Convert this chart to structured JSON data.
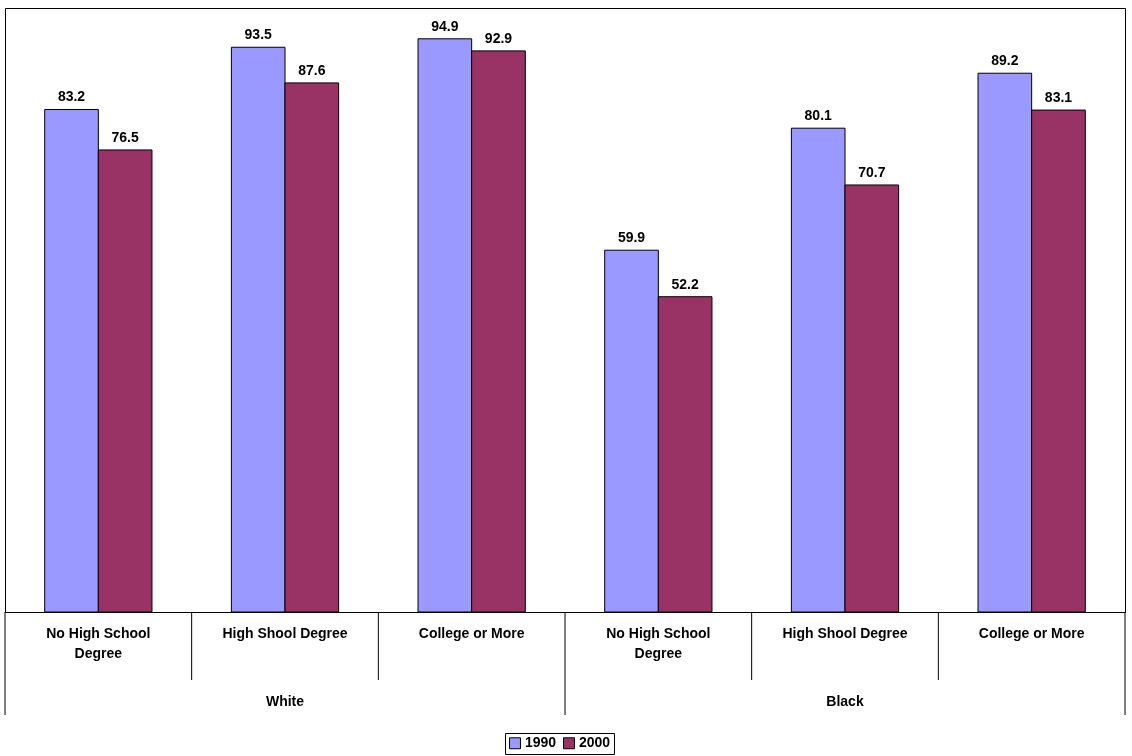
{
  "chart_data": {
    "type": "bar",
    "categories": [
      "No High School Degree",
      "High Shool Degree",
      "College or More",
      "No High School Degree",
      "High Shool Degree",
      "College or More"
    ],
    "series": [
      {
        "name": "1990",
        "color": "#9999ff",
        "values": [
          83.2,
          93.5,
          94.9,
          59.9,
          80.1,
          89.2
        ]
      },
      {
        "name": "2000",
        "color": "#993366",
        "values": [
          76.5,
          87.6,
          92.9,
          52.2,
          70.7,
          83.1
        ]
      }
    ],
    "annotations": [
      "White",
      "Black"
    ],
    "data_labels": true,
    "legend": "bottom"
  }
}
